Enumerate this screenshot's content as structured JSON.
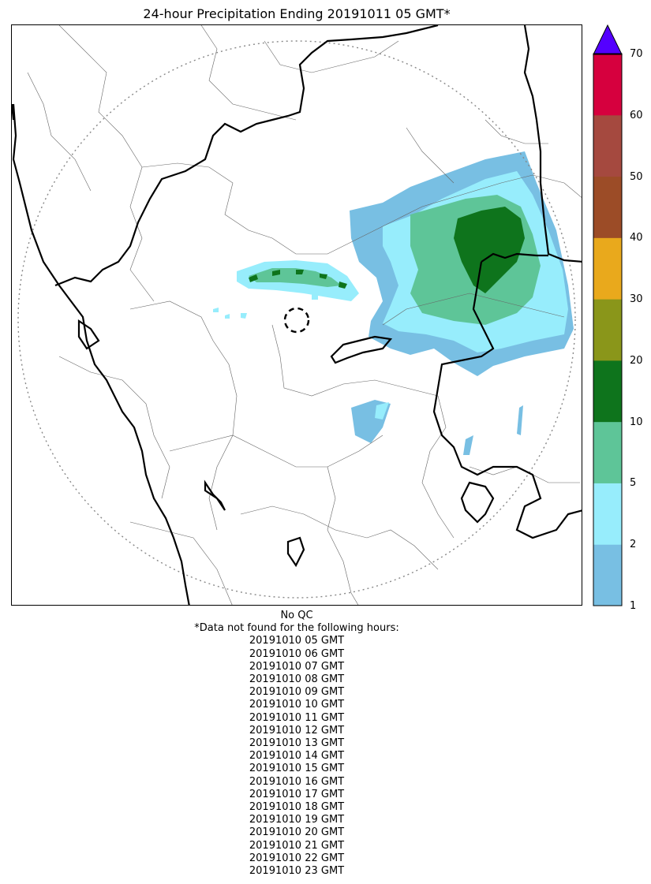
{
  "title": "24-hour Precipitation Ending 20191011 05 GMT*",
  "colorbar": {
    "ticks": [
      "1",
      "2",
      "5",
      "10",
      "20",
      "30",
      "40",
      "50",
      "60",
      "70"
    ],
    "colors": [
      "#78bfe3",
      "#97edfc",
      "#5ec598",
      "#0e741c",
      "#8a961a",
      "#e9a91c",
      "#9c4c27",
      "#a5493f",
      "#d6003e"
    ],
    "extend_color": "#5400ff"
  },
  "notes": {
    "qc": "No QC",
    "missing_header": "*Data not found for the following hours:",
    "missing_hours": [
      "20191010 05 GMT",
      "20191010 06 GMT",
      "20191010 07 GMT",
      "20191010 08 GMT",
      "20191010 09 GMT",
      "20191010 10 GMT",
      "20191010 11 GMT",
      "20191010 12 GMT",
      "20191010 13 GMT",
      "20191010 14 GMT",
      "20191010 15 GMT",
      "20191010 16 GMT",
      "20191010 17 GMT",
      "20191010 18 GMT",
      "20191010 19 GMT",
      "20191010 20 GMT",
      "20191010 21 GMT",
      "20191010 22 GMT",
      "20191010 23 GMT"
    ]
  }
}
